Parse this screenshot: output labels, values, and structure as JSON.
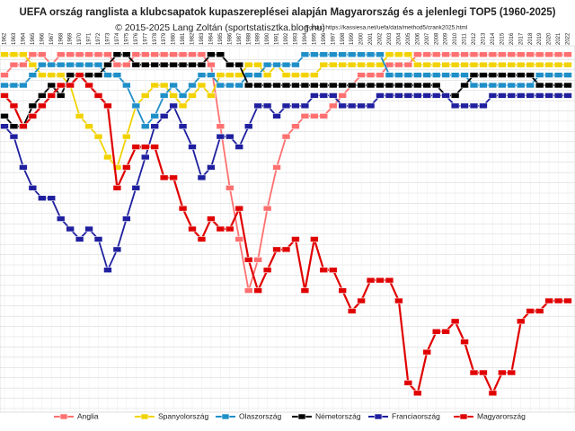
{
  "chart_data": {
    "type": "line",
    "title": "UEFA ország ranglista a klubcsapatok kupaszereplései alapján Magyarország és a jelenlegi TOP5 (1960-2025)",
    "subtitle": "© 2015-2025 Lang Zoltán (sportstatisztka.blog.hu)",
    "source": "Forrás: https://kassiesa.net/uefa/data/method5/crank2025.html",
    "categories": [
      "1962",
      "1963",
      "1964",
      "1965",
      "1966",
      "1967",
      "1968",
      "1969",
      "1970",
      "1971",
      "1972",
      "1973",
      "1974",
      "1975",
      "1976",
      "1977",
      "1978",
      "1979",
      "1980",
      "1981",
      "1982",
      "1983",
      "1984",
      "1985",
      "1986",
      "1987",
      "1988",
      "1989",
      "1990",
      "1991",
      "1992",
      "1993",
      "1994",
      "1995",
      "1996",
      "1997",
      "1998",
      "1999",
      "2000",
      "2001",
      "2002",
      "2003",
      "2004",
      "2005",
      "2006",
      "2007",
      "2008",
      "2009",
      "2010",
      "2011",
      "2012",
      "2013",
      "2014",
      "2015",
      "2016",
      "2017",
      "2018",
      "2019",
      "2020",
      "2021",
      "2022"
    ],
    "ylim": [
      0.5,
      35.5
    ],
    "y_inverted": true,
    "yticks": [
      1,
      2,
      3,
      4,
      5,
      6,
      7,
      8,
      9,
      10,
      11,
      12,
      13,
      14,
      15,
      16,
      17,
      18,
      19,
      20,
      21,
      22,
      23,
      24,
      25,
      26,
      27,
      28,
      29,
      30,
      31,
      32,
      33,
      34,
      35
    ],
    "grid": true,
    "series": [
      {
        "name": "Anglia",
        "color": "#ff7070",
        "values": [
          3,
          2,
          2,
          1,
          1,
          2,
          1,
          1,
          1,
          1,
          1,
          1,
          2,
          2,
          1,
          1,
          1,
          1,
          1,
          1,
          1,
          1,
          2,
          8,
          14,
          19,
          24,
          21,
          16,
          12,
          9,
          8,
          7,
          7,
          7,
          6,
          5,
          4,
          3,
          3,
          3,
          2,
          2,
          2,
          1,
          1,
          1,
          1,
          1,
          1,
          1,
          1,
          1,
          1,
          1,
          1,
          1,
          1,
          1,
          1,
          1
        ]
      },
      {
        "name": "Spanyolország",
        "color": "#f2d200",
        "values": [
          1,
          1,
          1,
          2,
          3,
          3,
          3,
          4,
          7,
          8,
          9,
          11,
          12,
          9,
          6,
          5,
          4,
          4,
          5,
          6,
          5,
          4,
          5,
          3,
          3,
          3,
          2,
          2,
          3,
          2,
          3,
          3,
          3,
          3,
          2,
          2,
          2,
          2,
          2,
          2,
          2,
          1,
          1,
          1,
          2,
          2,
          2,
          2,
          2,
          2,
          2,
          2,
          2,
          2,
          2,
          2,
          2,
          2,
          2,
          2,
          2
        ]
      },
      {
        "name": "Olaszország",
        "color": "#1f8fc8",
        "values": [
          4,
          4,
          4,
          3,
          2,
          2,
          2,
          2,
          2,
          2,
          2,
          3,
          3,
          4,
          6,
          8,
          7,
          5,
          4,
          5,
          4,
          3,
          3,
          4,
          4,
          4,
          3,
          3,
          2,
          2,
          2,
          2,
          1,
          1,
          1,
          1,
          1,
          1,
          1,
          1,
          1,
          3,
          3,
          3,
          3,
          3,
          3,
          3,
          3,
          3,
          4,
          4,
          4,
          4,
          4,
          4,
          4,
          3,
          3,
          3,
          3
        ]
      },
      {
        "name": "Németország",
        "color": "#000000",
        "values": [
          7,
          8,
          8,
          6,
          5,
          4,
          5,
          3,
          3,
          3,
          3,
          2,
          1,
          1,
          2,
          2,
          2,
          2,
          2,
          2,
          2,
          2,
          1,
          1,
          2,
          2,
          4,
          4,
          4,
          4,
          4,
          4,
          4,
          4,
          4,
          4,
          4,
          4,
          4,
          4,
          4,
          4,
          4,
          4,
          4,
          4,
          4,
          5,
          5,
          4,
          3,
          3,
          3,
          3,
          3,
          3,
          3,
          4,
          4,
          4,
          4
        ]
      },
      {
        "name": "Franciaország",
        "color": "#1f1f9f",
        "values": [
          8,
          9,
          12,
          14,
          15,
          15,
          17,
          18,
          19,
          18,
          19,
          22,
          20,
          17,
          14,
          11,
          8,
          7,
          6,
          8,
          10,
          13,
          12,
          9,
          9,
          10,
          8,
          6,
          6,
          7,
          6,
          6,
          6,
          5,
          5,
          5,
          6,
          6,
          6,
          6,
          5,
          5,
          5,
          5,
          5,
          5,
          5,
          5,
          6,
          6,
          6,
          6,
          5,
          5,
          5,
          5,
          5,
          5,
          5,
          5,
          5
        ]
      },
      {
        "name": "Magyarország",
        "color": "#e00000",
        "values": [
          5,
          6,
          8,
          7,
          6,
          5,
          4,
          4,
          3,
          4,
          5,
          6,
          14,
          12,
          10,
          10,
          10,
          13,
          13,
          16,
          18,
          19,
          17,
          18,
          18,
          16,
          21,
          24,
          22,
          20,
          20,
          19,
          24,
          19,
          22,
          22,
          24,
          26,
          25,
          23,
          23,
          23,
          25,
          33,
          34,
          30,
          28,
          28,
          27,
          29,
          32,
          32,
          34,
          32,
          32,
          27,
          26,
          26,
          25,
          25,
          25
        ]
      }
    ]
  }
}
